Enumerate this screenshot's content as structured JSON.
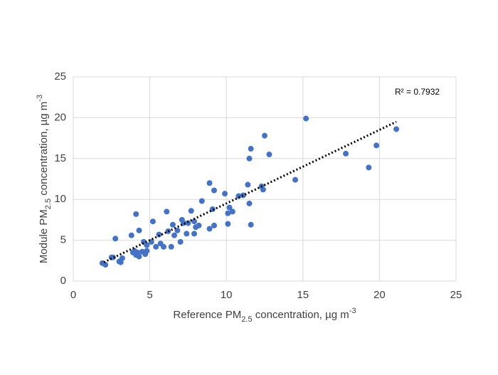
{
  "chart_data": {
    "type": "scatter",
    "xlabel": [
      "Reference PM",
      "2.5",
      " concentration, µg m",
      "-3"
    ],
    "ylabel": [
      "Module PM",
      "2.5",
      " concentration, µg m",
      "-3"
    ],
    "annotation": "R² = 0.7932",
    "color": "#4472c4",
    "grid": true,
    "xlim": [
      0,
      25
    ],
    "xticks": [
      0,
      5,
      10,
      15,
      20,
      25
    ],
    "ylim": [
      0,
      25
    ],
    "yticks": [
      0,
      5,
      10,
      15,
      20,
      25
    ],
    "x": [
      1.9,
      2.1,
      2.5,
      2.6,
      2.75,
      3.0,
      3.1,
      3.2,
      3.8,
      3.9,
      4.0,
      4.1,
      4.1,
      4.2,
      4.3,
      4.3,
      4.5,
      4.6,
      4.7,
      4.8,
      4.8,
      5.1,
      5.2,
      5.4,
      5.6,
      5.7,
      5.9,
      6.1,
      6.2,
      6.4,
      6.5,
      6.6,
      6.8,
      7.0,
      7.1,
      7.2,
      7.4,
      7.5,
      7.7,
      7.9,
      7.9,
      8.0,
      8.2,
      8.4,
      8.9,
      8.9,
      9.1,
      9.2,
      9.2,
      9.9,
      10.1,
      10.1,
      10.2,
      10.4,
      10.8,
      11.1,
      11.4,
      11.5,
      11.5,
      11.6,
      11.6,
      12.3,
      12.4,
      12.5,
      12.8,
      14.5,
      15.2,
      17.8,
      19.3,
      19.8,
      21.1
    ],
    "y": [
      2.2,
      2.0,
      2.9,
      2.9,
      5.2,
      2.4,
      2.3,
      2.8,
      5.6,
      3.5,
      3.7,
      8.2,
      3.2,
      3.5,
      6.2,
      3.0,
      3.6,
      4.8,
      3.3,
      4.4,
      3.7,
      4.8,
      7.3,
      4.2,
      5.7,
      4.6,
      4.2,
      8.5,
      6.1,
      4.2,
      6.9,
      5.6,
      6.2,
      4.8,
      7.5,
      7.1,
      5.8,
      7.1,
      8.6,
      7.3,
      5.8,
      6.6,
      6.8,
      9.8,
      6.4,
      12.0,
      8.8,
      11.1,
      6.8,
      10.7,
      7.0,
      8.3,
      9.0,
      8.5,
      10.4,
      10.5,
      11.8,
      15.0,
      9.5,
      16.2,
      6.9,
      11.6,
      11.2,
      17.8,
      15.5,
      12.4,
      19.9,
      15.6,
      13.9,
      16.6,
      18.6
    ],
    "trendline": {
      "x": [
        2.0,
        21.1
      ],
      "y": [
        2.3,
        19.5
      ]
    }
  }
}
